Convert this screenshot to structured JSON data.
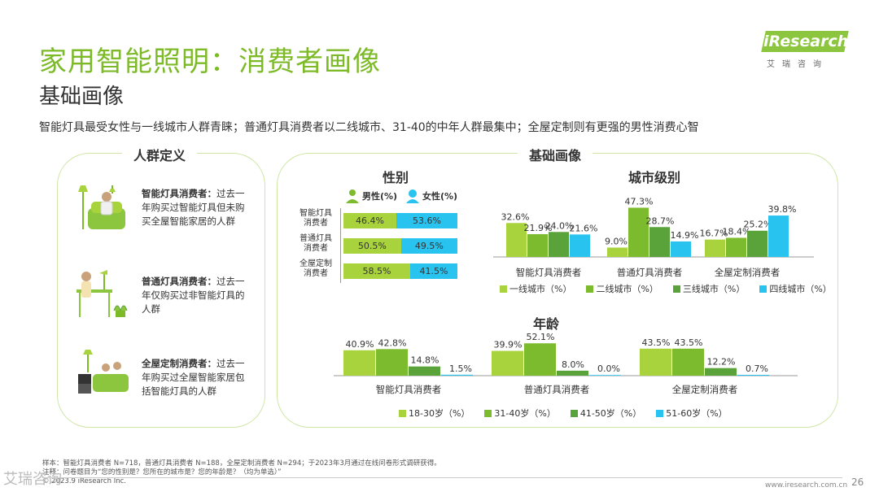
{
  "header": {
    "title": "家用智能照明：消费者画像",
    "subtitle": "基础画像",
    "headline": "智能灯具最受女性与一线城市人群青睐；普通灯具消费者以二线城市、31-40的中年人群最集中；全屋定制则有更强的男性消费心智"
  },
  "logo": {
    "word": "iResearch",
    "cn": "艾瑞咨询"
  },
  "left_panel": {
    "title": "人群定义",
    "personas": [
      {
        "name": "智能灯具消费者：",
        "desc": "过去一年购买过智能灯具但未购买全屋智能家居的人群"
      },
      {
        "name": "普通灯具消费者：",
        "desc": "过去一年仅购买过非智能灯具的人群"
      },
      {
        "name": "全屋定制消费者：",
        "desc": "过去一年购买过全屋智能家居包括智能灯具的人群"
      }
    ]
  },
  "right_panel": {
    "title": "基础画像"
  },
  "colors": {
    "green_light": "#a8d33c",
    "green_mid": "#7dbb2e",
    "green_dark": "#5aa33a",
    "cyan": "#29c3f0",
    "brand": "#8cc63f"
  },
  "chart_data": [
    {
      "type": "bar",
      "orientation": "horizontal-stacked",
      "title": "性别",
      "categories": [
        "智能灯具消费者",
        "普通灯具消费者",
        "全屋定制消费者"
      ],
      "series": [
        {
          "name": "男性(%)",
          "values": [
            46.4,
            50.5,
            58.5
          ],
          "labels": [
            "46.4%",
            "50.5%",
            "58.5%"
          ]
        },
        {
          "name": "女性(%)",
          "values": [
            53.6,
            49.5,
            41.5
          ],
          "labels": [
            "53.6%",
            "49.5%",
            "41.5%"
          ]
        }
      ],
      "category_labels": [
        [
          "智能灯具",
          "消费者"
        ],
        [
          "普通灯具",
          "消费者"
        ],
        [
          "全屋定制",
          "消费者"
        ]
      ]
    },
    {
      "type": "bar",
      "title": "城市级别",
      "categories": [
        "智能灯具消费者",
        "普通灯具消费者",
        "全屋定制消费者"
      ],
      "series": [
        {
          "name": "一线城市（%）",
          "values": [
            32.6,
            9.0,
            16.7
          ],
          "labels": [
            "32.6%",
            "9.0%",
            "16.7%"
          ]
        },
        {
          "name": "二线城市（%）",
          "values": [
            21.9,
            47.3,
            18.4
          ],
          "labels": [
            "21.9%",
            "47.3%",
            "18.4%"
          ]
        },
        {
          "name": "三线城市（%）",
          "values": [
            24.0,
            28.7,
            25.2
          ],
          "labels": [
            "24.0%",
            "28.7%",
            "25.2%"
          ]
        },
        {
          "name": "四线城市（%）",
          "values": [
            21.6,
            14.9,
            39.8
          ],
          "labels": [
            "21.6%",
            "14.9%",
            "39.8%"
          ]
        }
      ],
      "ylim": [
        0,
        50
      ]
    },
    {
      "type": "bar",
      "title": "年龄",
      "categories": [
        "智能灯具消费者",
        "普通灯具消费者",
        "全屋定制消费者"
      ],
      "series": [
        {
          "name": "18-30岁（%）",
          "values": [
            40.9,
            39.9,
            43.5
          ],
          "labels": [
            "40.9%",
            "39.9%",
            "43.5%"
          ]
        },
        {
          "name": "31-40岁（%）",
          "values": [
            42.8,
            52.1,
            43.5
          ],
          "labels": [
            "42.8%",
            "52.1%",
            "43.5%"
          ]
        },
        {
          "name": "41-50岁（%）",
          "values": [
            14.8,
            8.0,
            12.2
          ],
          "labels": [
            "14.8%",
            "8.0%",
            "12.2%"
          ]
        },
        {
          "name": "51-60岁（%）",
          "values": [
            1.5,
            0.0,
            0.7
          ],
          "labels": [
            "1.5%",
            "0.0%",
            "0.7%"
          ]
        }
      ],
      "ylim": [
        0,
        55
      ]
    }
  ],
  "footer": {
    "note1": "样本：智能灯具消费者 N=718，普通灯具消费者 N=188，全屋定制消费者 N=294；于2023年3月通过在线问卷形式调研获得。",
    "note2": "注释：问卷题目为“您的性别是？您所在的城市是？您的年龄是？（均为单选）”",
    "copyright": "© 2023.9 iResearch Inc.",
    "url": "www.iresearch.com.cn",
    "page": "26",
    "watermark": "艾瑞咨询"
  }
}
